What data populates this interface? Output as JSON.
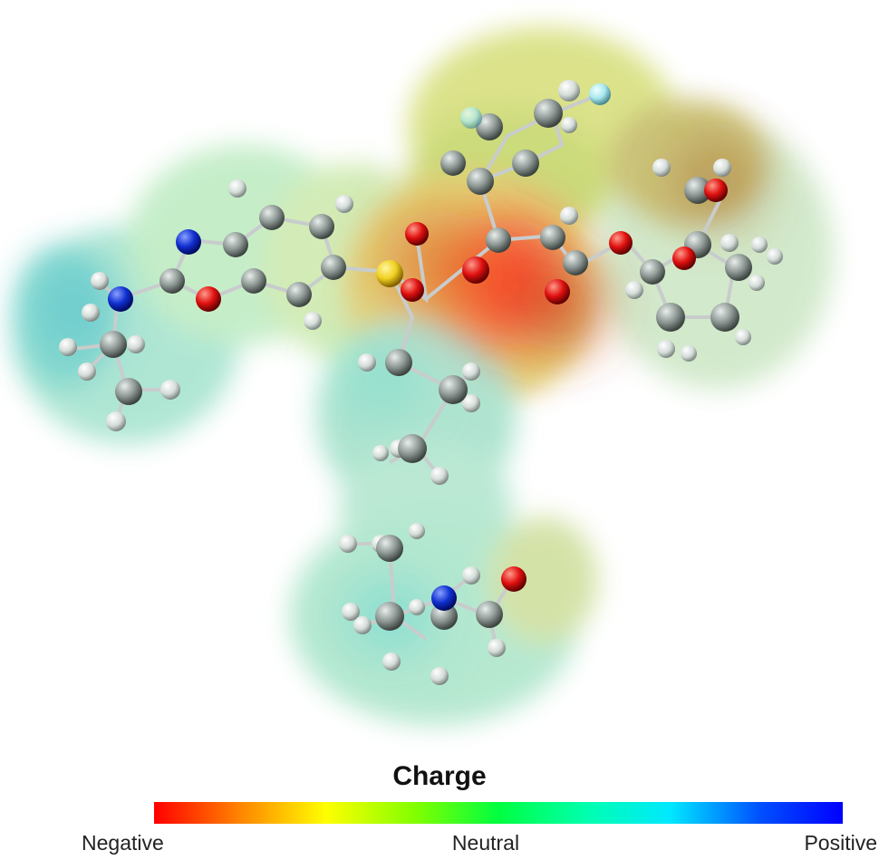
{
  "legend": {
    "title": "Charge",
    "low_label": "Negative",
    "mid_label": "Neutral",
    "high_label": "Positive",
    "gradient_colors": [
      "#ff0000",
      "#ff8a00",
      "#ffff00",
      "#80ff00",
      "#00ff40",
      "#00ffb0",
      "#00e8ff",
      "#0050ff",
      "#0000ff"
    ]
  },
  "atom_colors": {
    "carbon": "#8a9490",
    "hydrogen": "#dde6e2",
    "nitrogen": "#1030d0",
    "oxygen": "#e01010",
    "sulfur": "#f0d020",
    "fluorine": "#a8e8f0"
  }
}
